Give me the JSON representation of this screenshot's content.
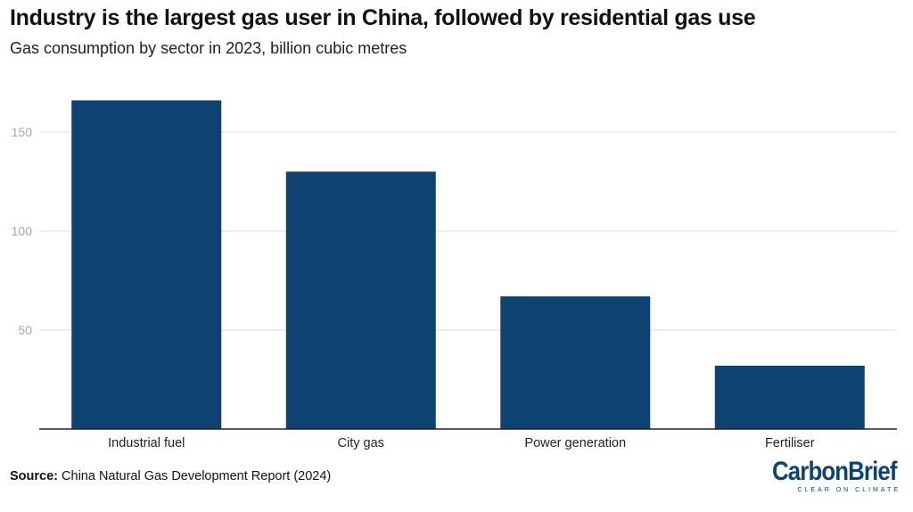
{
  "header": {
    "title": "Industry is the largest gas user in China, followed by residential gas use",
    "subtitle": "Gas consumption by sector in 2023, billion cubic metres"
  },
  "footer": {
    "source_label": "Source:",
    "source_text": "China Natural Gas Development Report (2024)",
    "brand_name": "CarbonBrief",
    "brand_tagline": "CLEAR ON CLIMATE"
  },
  "colors": {
    "bar": "#0e4270",
    "gridline": "#dcdcdc",
    "tick_label": "#a8a8a8",
    "axis": "#222222"
  },
  "chart_data": {
    "type": "bar",
    "title": "Industry is the largest gas user in China, followed by residential gas use",
    "subtitle": "Gas consumption by sector in 2023, billion cubic metres",
    "categories": [
      "Industrial fuel",
      "City gas",
      "Power generation",
      "Fertiliser"
    ],
    "values": [
      166,
      130,
      67,
      32
    ],
    "xlabel": "",
    "ylabel": "",
    "ylim": [
      0,
      180
    ],
    "yticks": [
      50,
      100,
      150
    ],
    "grid": true,
    "legend": "none"
  }
}
